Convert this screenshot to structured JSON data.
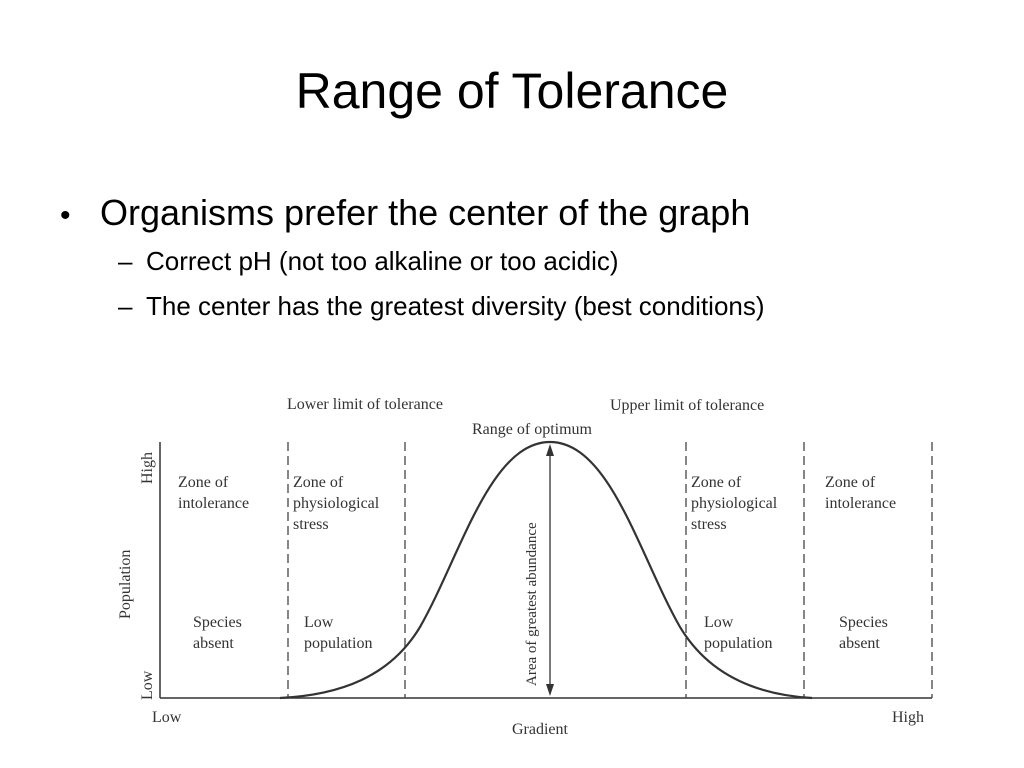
{
  "slide": {
    "title": "Range of Tolerance",
    "bullets": [
      {
        "text": "Organisms prefer the center of the graph",
        "sub": [
          "Correct pH (not too alkaline or too acidic)",
          "The center has the greatest diversity (best conditions)"
        ]
      }
    ]
  },
  "diagram": {
    "lower_limit": "Lower limit of tolerance",
    "upper_limit": "Upper limit of tolerance",
    "optimum": "Range of optimum",
    "y_axis_label": "Population",
    "y_high": "High",
    "y_low": "Low",
    "x_axis_label": "Gradient",
    "x_low": "Low",
    "x_high": "High",
    "center_label": "Area of greatest abundance",
    "zones": {
      "left_intolerance": [
        "Zone of",
        "intolerance"
      ],
      "left_stress": [
        "Zone of",
        "physiological",
        "stress"
      ],
      "right_stress": [
        "Zone of",
        "physiological",
        "stress"
      ],
      "right_intolerance": [
        "Zone of",
        "intolerance"
      ],
      "left_absent": [
        "Species",
        "absent"
      ],
      "left_lowpop": [
        "Low",
        "population"
      ],
      "right_lowpop": [
        "Low",
        "population"
      ],
      "right_absent": [
        "Species",
        "absent"
      ]
    }
  }
}
